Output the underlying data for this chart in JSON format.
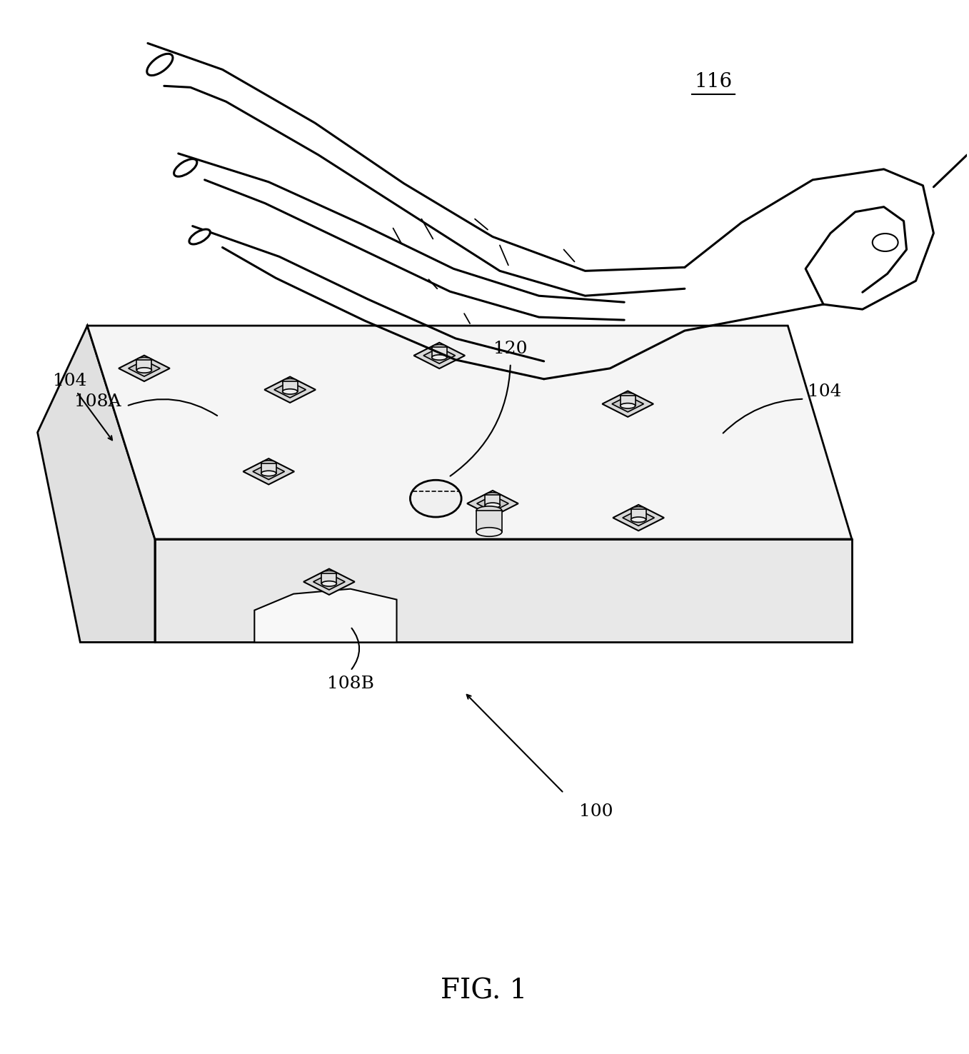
{
  "title": "FIG. 1",
  "title_fontsize": 28,
  "background_color": "#ffffff",
  "line_color": "#000000",
  "line_width": 2.0,
  "fig_width": 13.57,
  "fig_height": 14.76,
  "label_fontsize": 18
}
